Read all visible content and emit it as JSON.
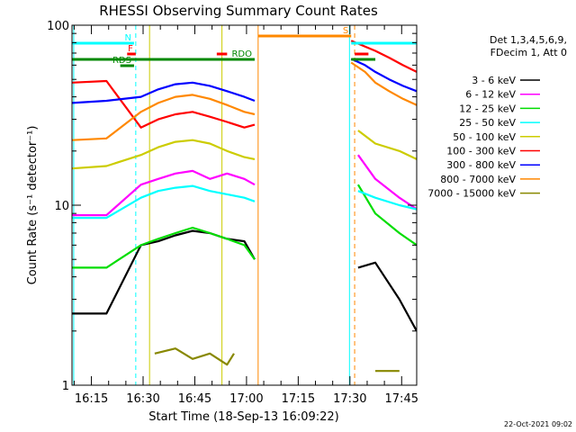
{
  "chart_data": {
    "type": "line",
    "title": "RHESSI Observing Summary Count Rates",
    "xlabel": "Start Time (18-Sep-13 16:09:22)",
    "ylabel": "Count Rate (s⁻¹ detector⁻¹)",
    "y_scale": "log",
    "ylim": [
      1,
      100
    ],
    "y_ticks": [
      {
        "v": 1,
        "label": "1"
      },
      {
        "v": 10,
        "label": "10"
      },
      {
        "v": 100,
        "label": "100"
      }
    ],
    "xlim_minutes": [
      0,
      100
    ],
    "x_ticks": [
      {
        "label": "16:15"
      },
      {
        "label": "16:30"
      },
      {
        "label": "16:45"
      },
      {
        "label": "17:00"
      },
      {
        "label": "17:15"
      },
      {
        "label": "17:30"
      },
      {
        "label": "17:45"
      }
    ],
    "legend": {
      "header": [
        "Det 1,3,4,5,6,9,",
        "FDecim 1, Att 0"
      ],
      "placement": "right"
    },
    "timestamp": "22-Oct-2021 09:02",
    "series": [
      {
        "name": "3 - 6 keV",
        "color": "#000000",
        "segments": [
          [
            [
              0,
              2.5
            ],
            [
              10,
              2.5
            ],
            [
              20,
              6.0
            ],
            [
              25,
              6.3
            ],
            [
              30,
              6.8
            ],
            [
              35,
              7.2
            ],
            [
              40,
              7.0
            ],
            [
              45,
              6.5
            ],
            [
              50,
              6.3
            ],
            [
              53,
              5.0
            ]
          ],
          [
            [
              83,
              4.5
            ],
            [
              88,
              4.8
            ],
            [
              95,
              3.0
            ],
            [
              100,
              2.0
            ]
          ]
        ]
      },
      {
        "name": "6 - 12 keV",
        "color": "#ff00ff",
        "segments": [
          [
            [
              0,
              8.8
            ],
            [
              10,
              8.8
            ],
            [
              20,
              13
            ],
            [
              25,
              14
            ],
            [
              30,
              15
            ],
            [
              35,
              15.5
            ],
            [
              40,
              14
            ],
            [
              45,
              15
            ],
            [
              50,
              14
            ],
            [
              53,
              13
            ]
          ],
          [
            [
              83,
              19
            ],
            [
              88,
              14
            ],
            [
              95,
              11
            ],
            [
              100,
              9.5
            ]
          ]
        ]
      },
      {
        "name": "12 - 25 keV",
        "color": "#00dd00",
        "segments": [
          [
            [
              0,
              4.5
            ],
            [
              10,
              4.5
            ],
            [
              20,
              6.0
            ],
            [
              25,
              6.5
            ],
            [
              30,
              7.0
            ],
            [
              35,
              7.5
            ],
            [
              40,
              7.0
            ],
            [
              45,
              6.5
            ],
            [
              50,
              6.0
            ],
            [
              53,
              5.0
            ]
          ],
          [
            [
              83,
              13
            ],
            [
              88,
              9.0
            ],
            [
              95,
              7.0
            ],
            [
              100,
              6.0
            ]
          ]
        ]
      },
      {
        "name": "25 - 50 keV",
        "color": "#00ffff",
        "segments": [
          [
            [
              0,
              8.5
            ],
            [
              10,
              8.5
            ],
            [
              20,
              11
            ],
            [
              25,
              12
            ],
            [
              30,
              12.5
            ],
            [
              35,
              12.8
            ],
            [
              40,
              12
            ],
            [
              45,
              11.5
            ],
            [
              50,
              11
            ],
            [
              53,
              10.5
            ]
          ],
          [
            [
              83,
              12
            ],
            [
              88,
              11
            ],
            [
              95,
              10
            ],
            [
              100,
              9.5
            ]
          ]
        ]
      },
      {
        "name": "50 - 100 keV",
        "color": "#cccc00",
        "segments": [
          [
            [
              0,
              16
            ],
            [
              10,
              16.5
            ],
            [
              20,
              19
            ],
            [
              25,
              21
            ],
            [
              30,
              22.5
            ],
            [
              35,
              23
            ],
            [
              40,
              22
            ],
            [
              45,
              20
            ],
            [
              50,
              18.5
            ],
            [
              53,
              18
            ]
          ],
          [
            [
              83,
              26
            ],
            [
              88,
              22
            ],
            [
              95,
              20
            ],
            [
              100,
              18
            ]
          ]
        ]
      },
      {
        "name": "100 - 300 keV",
        "color": "#ff0000",
        "segments": [
          [
            [
              0,
              48
            ],
            [
              10,
              49
            ],
            [
              20,
              27
            ],
            [
              25,
              30
            ],
            [
              30,
              32
            ],
            [
              35,
              33
            ],
            [
              40,
              31
            ],
            [
              45,
              29
            ],
            [
              50,
              27
            ],
            [
              53,
              28
            ]
          ],
          [
            [
              81,
              82
            ],
            [
              85,
              76
            ],
            [
              88,
              72
            ],
            [
              92,
              66
            ],
            [
              96,
              60
            ],
            [
              100,
              55
            ]
          ]
        ]
      },
      {
        "name": "300 - 800 keV",
        "color": "#0000ff",
        "segments": [
          [
            [
              0,
              37
            ],
            [
              10,
              38
            ],
            [
              20,
              40
            ],
            [
              25,
              44
            ],
            [
              30,
              47
            ],
            [
              35,
              48
            ],
            [
              40,
              46
            ],
            [
              45,
              43
            ],
            [
              50,
              40
            ],
            [
              53,
              38
            ]
          ],
          [
            [
              81,
              65
            ],
            [
              85,
              60
            ],
            [
              88,
              55
            ],
            [
              92,
              50
            ],
            [
              96,
              46
            ],
            [
              100,
              43
            ]
          ]
        ]
      },
      {
        "name": "800 - 7000 keV",
        "color": "#ff8800",
        "segments": [
          [
            [
              0,
              23
            ],
            [
              10,
              23.5
            ],
            [
              20,
              33
            ],
            [
              25,
              37
            ],
            [
              30,
              40
            ],
            [
              35,
              41
            ],
            [
              40,
              39
            ],
            [
              45,
              36
            ],
            [
              50,
              33
            ],
            [
              53,
              32
            ]
          ],
          [
            [
              81,
              62
            ],
            [
              85,
              55
            ],
            [
              88,
              48
            ],
            [
              92,
              43
            ],
            [
              96,
              39
            ],
            [
              100,
              36
            ]
          ]
        ]
      },
      {
        "name": "7000 - 15000 keV",
        "color": "#888800",
        "segments": [
          [
            [
              24,
              1.5
            ],
            [
              30,
              1.6
            ],
            [
              35,
              1.4
            ],
            [
              40,
              1.5
            ],
            [
              45,
              1.3
            ],
            [
              47,
              1.5
            ]
          ],
          [
            [
              88,
              1.2
            ],
            [
              95,
              1.2
            ]
          ]
        ]
      }
    ],
    "flags": [
      {
        "label": "N",
        "color": "#00ffff",
        "segments": [
          [
            0,
            18.0
          ],
          [
            81,
            100
          ]
        ]
      },
      {
        "label": "F",
        "color": "#ff0000",
        "segments": [
          [
            16,
            18.5
          ],
          [
            42,
            45
          ],
          [
            82,
            86
          ]
        ]
      },
      {
        "label": "RDO",
        "color": "#008800",
        "segments": [
          [
            0,
            53
          ],
          [
            81,
            88
          ]
        ]
      },
      {
        "label": "RDS",
        "color": "#008800",
        "segments": [
          [
            14,
            18
          ]
        ]
      },
      {
        "label": "S",
        "color": "#ff8800",
        "segments": [
          [
            54,
            81
          ]
        ]
      }
    ],
    "vertical_markers": [
      {
        "x": 0.5,
        "color": "#00ffff",
        "style": "solid"
      },
      {
        "x": 18.5,
        "color": "#00ffff",
        "style": "dashed"
      },
      {
        "x": 80.5,
        "color": "#00ffff",
        "style": "solid"
      },
      {
        "x": 100,
        "color": "#00ffff",
        "style": "dashed"
      },
      {
        "x": 54,
        "color": "#ff8800",
        "style": "solid"
      },
      {
        "x": 82,
        "color": "#ff8800",
        "style": "dashed"
      },
      {
        "x": 22.5,
        "color": "#cccc00",
        "style": "solid"
      },
      {
        "x": 43.5,
        "color": "#cccc00",
        "style": "solid"
      }
    ]
  }
}
